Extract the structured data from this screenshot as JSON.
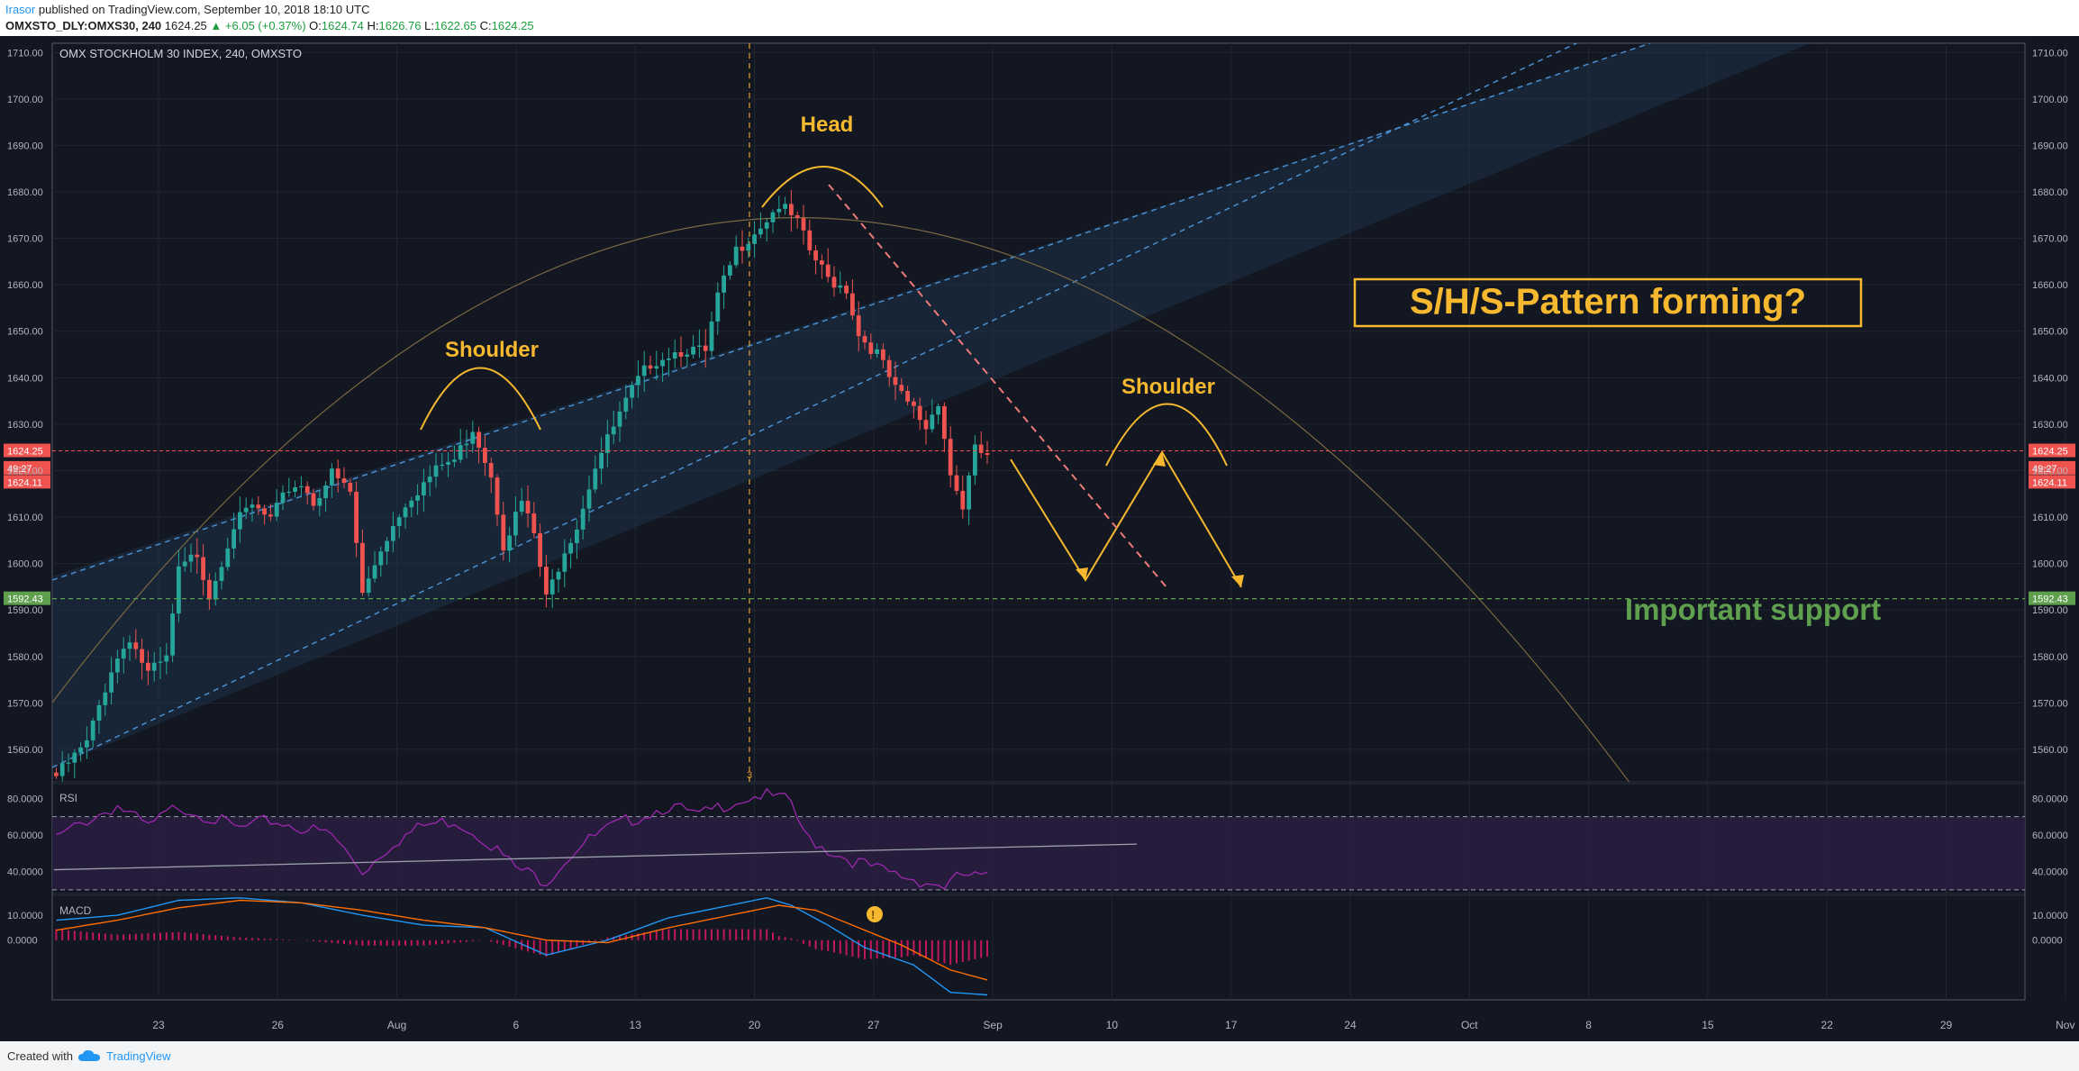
{
  "header": {
    "author": "Irasor",
    "published": "published on TradingView.com, September 10, 2018 18:10 UTC",
    "symbol": "OMXSTO_DLY:OMXS30, 240",
    "last": "1624.25",
    "change": "▲ +6.05 (+0.37%)",
    "open_label": "O:",
    "open": "1624.74",
    "high_label": "H:",
    "high": "1626.76",
    "low_label": "L:",
    "low": "1622.65",
    "close_label": "C:",
    "close": "1624.25"
  },
  "footer": {
    "created_with": "Created with",
    "brand": "TradingView"
  },
  "colors": {
    "up": "#26a69a",
    "down": "#ef5350",
    "annotation": "#f5b82e",
    "support": "#5fa04e",
    "rsi": "#9c27b0",
    "macd": "#2196f3",
    "signal": "#ff6d00"
  },
  "chart_data": [
    {
      "type": "candlestick",
      "title": "OMX STOCKHOLM 30 INDEX, 240, OMXSTO",
      "ylim": [
        1553,
        1712
      ],
      "y_ticks": [
        "1710.00",
        "1700.00",
        "1690.00",
        "1680.00",
        "1670.00",
        "1660.00",
        "1650.00",
        "1640.00",
        "1630.00",
        "1620.00",
        "1610.00",
        "1600.00",
        "1590.00",
        "1580.00",
        "1570.00",
        "1560.00"
      ],
      "x_tick_labels": [
        "23",
        "26",
        "Aug",
        "6",
        "13",
        "20",
        "27",
        "Sep",
        "10",
        "17",
        "24",
        "Oct",
        "8",
        "15",
        "22",
        "29",
        "Nov",
        "6"
      ],
      "price_levels": [
        {
          "label": "1624.25",
          "value": 1624.25,
          "color": "#ef5350"
        },
        {
          "label": "49:27",
          "value": 1620.5,
          "color": "#ef5350"
        },
        {
          "label": "1624.11",
          "value": 1617.5,
          "color": "#ef5350"
        },
        {
          "label": "1592.43",
          "value": 1592.43,
          "color": "#5fa04e"
        }
      ],
      "keyframes": [
        [
          0,
          1555
        ],
        [
          5,
          1562
        ],
        [
          9,
          1578
        ],
        [
          12,
          1585
        ],
        [
          15,
          1577
        ],
        [
          18,
          1580
        ],
        [
          20,
          1599
        ],
        [
          23,
          1603
        ],
        [
          25,
          1594
        ],
        [
          29,
          1609
        ],
        [
          32,
          1613
        ],
        [
          35,
          1610
        ],
        [
          38,
          1617
        ],
        [
          40,
          1618
        ],
        [
          42,
          1614
        ],
        [
          45,
          1620
        ],
        [
          48,
          1616
        ],
        [
          50,
          1594
        ],
        [
          53,
          1604
        ],
        [
          57,
          1614
        ],
        [
          60,
          1618
        ],
        [
          63,
          1622
        ],
        [
          65,
          1623
        ],
        [
          68,
          1630
        ],
        [
          71,
          1620
        ],
        [
          73,
          1605
        ],
        [
          76,
          1614
        ],
        [
          78,
          1607
        ],
        [
          80,
          1593
        ],
        [
          83,
          1604
        ],
        [
          85,
          1609
        ],
        [
          88,
          1622
        ],
        [
          91,
          1630
        ],
        [
          94,
          1638
        ],
        [
          97,
          1644
        ],
        [
          100,
          1646
        ],
        [
          103,
          1647
        ],
        [
          106,
          1646
        ],
        [
          108,
          1658
        ],
        [
          111,
          1668
        ],
        [
          113,
          1671
        ],
        [
          116,
          1675
        ],
        [
          118,
          1678
        ],
        [
          121,
          1674
        ],
        [
          123,
          1668
        ],
        [
          126,
          1662
        ],
        [
          129,
          1660
        ],
        [
          131,
          1650
        ],
        [
          134,
          1646
        ],
        [
          137,
          1638
        ],
        [
          140,
          1634
        ],
        [
          142,
          1630
        ],
        [
          144,
          1636
        ],
        [
          146,
          1620
        ],
        [
          148,
          1613
        ],
        [
          150,
          1625
        ],
        [
          152,
          1624
        ]
      ],
      "annotations": [
        {
          "text": "Head"
        },
        {
          "text": "Shoulder"
        },
        {
          "text": "Shoulder"
        },
        {
          "text": "S/H/S-Pattern forming?"
        },
        {
          "text": "Important support"
        }
      ],
      "support_level": 1592.43
    },
    {
      "type": "line",
      "title": "RSI",
      "ylim": [
        28,
        88
      ],
      "y_ticks": [
        "80.0000",
        "60.0000",
        "40.0000"
      ],
      "bands": [
        70,
        30
      ],
      "keyframes": [
        [
          0,
          60
        ],
        [
          5,
          70
        ],
        [
          10,
          78
        ],
        [
          15,
          66
        ],
        [
          20,
          78
        ],
        [
          25,
          72
        ],
        [
          30,
          65
        ],
        [
          35,
          70
        ],
        [
          40,
          66
        ],
        [
          45,
          62
        ],
        [
          50,
          42
        ],
        [
          55,
          58
        ],
        [
          60,
          67
        ],
        [
          65,
          70
        ],
        [
          70,
          60
        ],
        [
          75,
          44
        ],
        [
          80,
          37
        ],
        [
          85,
          55
        ],
        [
          90,
          65
        ],
        [
          95,
          72
        ],
        [
          100,
          78
        ],
        [
          105,
          72
        ],
        [
          110,
          80
        ],
        [
          115,
          84
        ],
        [
          120,
          80
        ],
        [
          122,
          62
        ],
        [
          126,
          54
        ],
        [
          130,
          48
        ],
        [
          135,
          42
        ],
        [
          140,
          38
        ],
        [
          145,
          34
        ],
        [
          148,
          40
        ],
        [
          152,
          38
        ]
      ]
    },
    {
      "type": "line",
      "title": "MACD",
      "ylim": [
        -24,
        18
      ],
      "y_ticks": [
        "10.0000",
        "0.0000"
      ],
      "macd_keyframes": [
        [
          0,
          8
        ],
        [
          10,
          10
        ],
        [
          20,
          16
        ],
        [
          30,
          17
        ],
        [
          40,
          15
        ],
        [
          50,
          10
        ],
        [
          60,
          6
        ],
        [
          70,
          5
        ],
        [
          80,
          -6
        ],
        [
          90,
          0
        ],
        [
          100,
          9
        ],
        [
          110,
          14
        ],
        [
          116,
          17
        ],
        [
          120,
          14
        ],
        [
          126,
          6
        ],
        [
          132,
          -3
        ],
        [
          140,
          -10
        ],
        [
          146,
          -21
        ],
        [
          152,
          -22
        ]
      ],
      "signal_keyframes": [
        [
          0,
          4
        ],
        [
          10,
          8
        ],
        [
          20,
          13
        ],
        [
          30,
          16
        ],
        [
          40,
          15
        ],
        [
          50,
          12
        ],
        [
          60,
          8
        ],
        [
          70,
          5
        ],
        [
          80,
          0
        ],
        [
          90,
          -1
        ],
        [
          100,
          5
        ],
        [
          110,
          10
        ],
        [
          118,
          14
        ],
        [
          124,
          12
        ],
        [
          130,
          6
        ],
        [
          138,
          -2
        ],
        [
          146,
          -12
        ],
        [
          152,
          -16
        ]
      ]
    }
  ]
}
